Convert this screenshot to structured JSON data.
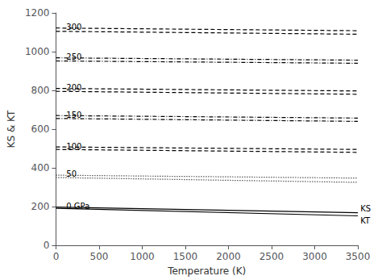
{
  "chart_data": {
    "type": "line",
    "xlabel": "Temperature (K)",
    "ylabel": "KS & KT",
    "x": [
      0,
      3500
    ],
    "color": "black",
    "grid": false,
    "series": [
      {
        "line_style": "solid",
        "values": [
          197,
          168
        ]
      },
      {
        "line_style": "solid",
        "values": [
          191,
          152
        ]
      },
      {
        "line_style": "dotted",
        "values": [
          362,
          347
        ]
      },
      {
        "line_style": "dotted",
        "values": [
          350,
          325
        ]
      },
      {
        "line_style": "dashed",
        "values": [
          508,
          495
        ]
      },
      {
        "line_style": "dashed",
        "values": [
          495,
          480
        ]
      },
      {
        "line_style": "dashdot",
        "values": [
          670,
          657
        ]
      },
      {
        "line_style": "dashdot",
        "values": [
          655,
          640
        ]
      },
      {
        "line_style": "dashed",
        "values": [
          810,
          797
        ]
      },
      {
        "line_style": "dashed",
        "values": [
          795,
          780
        ]
      },
      {
        "line_style": "dashdot",
        "values": [
          968,
          956
        ]
      },
      {
        "line_style": "dashdot",
        "values": [
          952,
          940
        ]
      },
      {
        "line_style": "dashed",
        "values": [
          1122,
          1108
        ]
      },
      {
        "line_style": "dashed",
        "values": [
          1105,
          1090
        ]
      }
    ],
    "annotations": [
      {
        "text": "0 GPa",
        "x": 120,
        "y": 202
      },
      {
        "text": "50",
        "x": 120,
        "y": 368
      },
      {
        "text": "100",
        "x": 120,
        "y": 512
      },
      {
        "text": "150",
        "x": 120,
        "y": 673
      },
      {
        "text": "200",
        "x": 120,
        "y": 813
      },
      {
        "text": "250",
        "x": 120,
        "y": 972
      },
      {
        "text": "300",
        "x": 120,
        "y": 1126
      },
      {
        "text": "KS",
        "x": 3530,
        "y": 170
      },
      {
        "text": "KT",
        "x": 3530,
        "y": 150
      }
    ],
    "xlim": [
      0,
      3500
    ],
    "ylim": [
      0,
      1200
    ],
    "xticks": [
      0,
      500,
      1000,
      1500,
      2000,
      2500,
      3000,
      3500
    ],
    "yticks": [
      0,
      200,
      400,
      600,
      800,
      1000,
      1200
    ]
  }
}
